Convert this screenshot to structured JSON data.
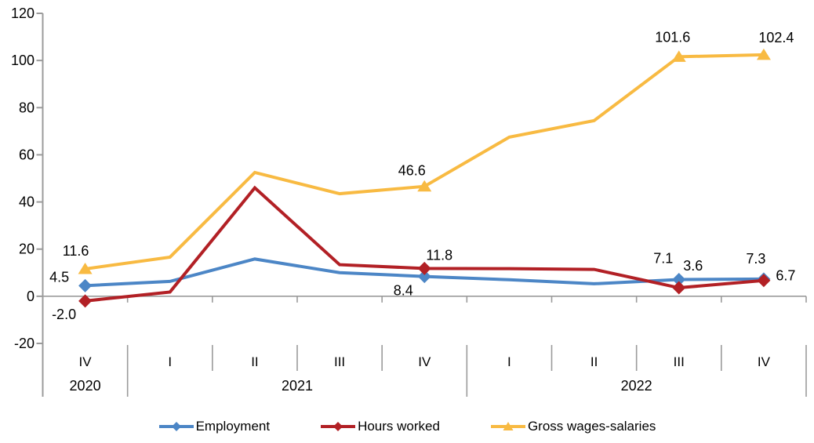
{
  "chart_data": {
    "type": "line",
    "title": "",
    "x_axis": {
      "quarters": [
        "IV",
        "I",
        "II",
        "III",
        "IV",
        "I",
        "II",
        "III",
        "IV"
      ],
      "year_groups": [
        {
          "label": "2020",
          "start": 0,
          "count": 1
        },
        {
          "label": "2021",
          "start": 1,
          "count": 4
        },
        {
          "label": "2022",
          "start": 5,
          "count": 4
        }
      ]
    },
    "y_axis": {
      "min": -20,
      "max": 120,
      "ticks": [
        120,
        100,
        80,
        60,
        40,
        20,
        0,
        -20
      ]
    },
    "grid": "zero-line-only",
    "series": [
      {
        "name": "Employment",
        "color": "#4C86C6",
        "marker": "diamond",
        "values": [
          4.5,
          6.3,
          15.8,
          10.0,
          8.4,
          7.0,
          5.3,
          7.1,
          7.3
        ],
        "point_labels": [
          {
            "index": 0,
            "text": "4.5"
          },
          {
            "index": 4,
            "text": "8.4"
          },
          {
            "index": 7,
            "text": "7.1"
          },
          {
            "index": 8,
            "text": "7.3"
          }
        ]
      },
      {
        "name": "Hours worked",
        "color": "#B22025",
        "marker": "diamond",
        "values": [
          -2.0,
          1.8,
          46.0,
          13.4,
          11.8,
          11.7,
          11.4,
          3.6,
          6.7
        ],
        "point_labels": [
          {
            "index": 0,
            "text": "-2.0"
          },
          {
            "index": 4,
            "text": "11.8"
          },
          {
            "index": 7,
            "text": "3.6"
          },
          {
            "index": 8,
            "text": "6.7"
          }
        ]
      },
      {
        "name": "Gross wages-salaries",
        "color": "#F8BA42",
        "marker": "triangle",
        "values": [
          11.6,
          16.6,
          52.5,
          43.5,
          46.6,
          67.5,
          74.5,
          101.6,
          102.4
        ],
        "point_labels": [
          {
            "index": 0,
            "text": "11.6"
          },
          {
            "index": 4,
            "text": "46.6"
          },
          {
            "index": 7,
            "text": "101.6"
          },
          {
            "index": 8,
            "text": "102.4"
          }
        ]
      }
    ],
    "legend": {
      "position": "bottom",
      "items": [
        "Employment",
        "Hours worked",
        "Gross wages-salaries"
      ]
    }
  },
  "colors": {
    "axis": "#9B9B9B",
    "text": "#000000"
  }
}
